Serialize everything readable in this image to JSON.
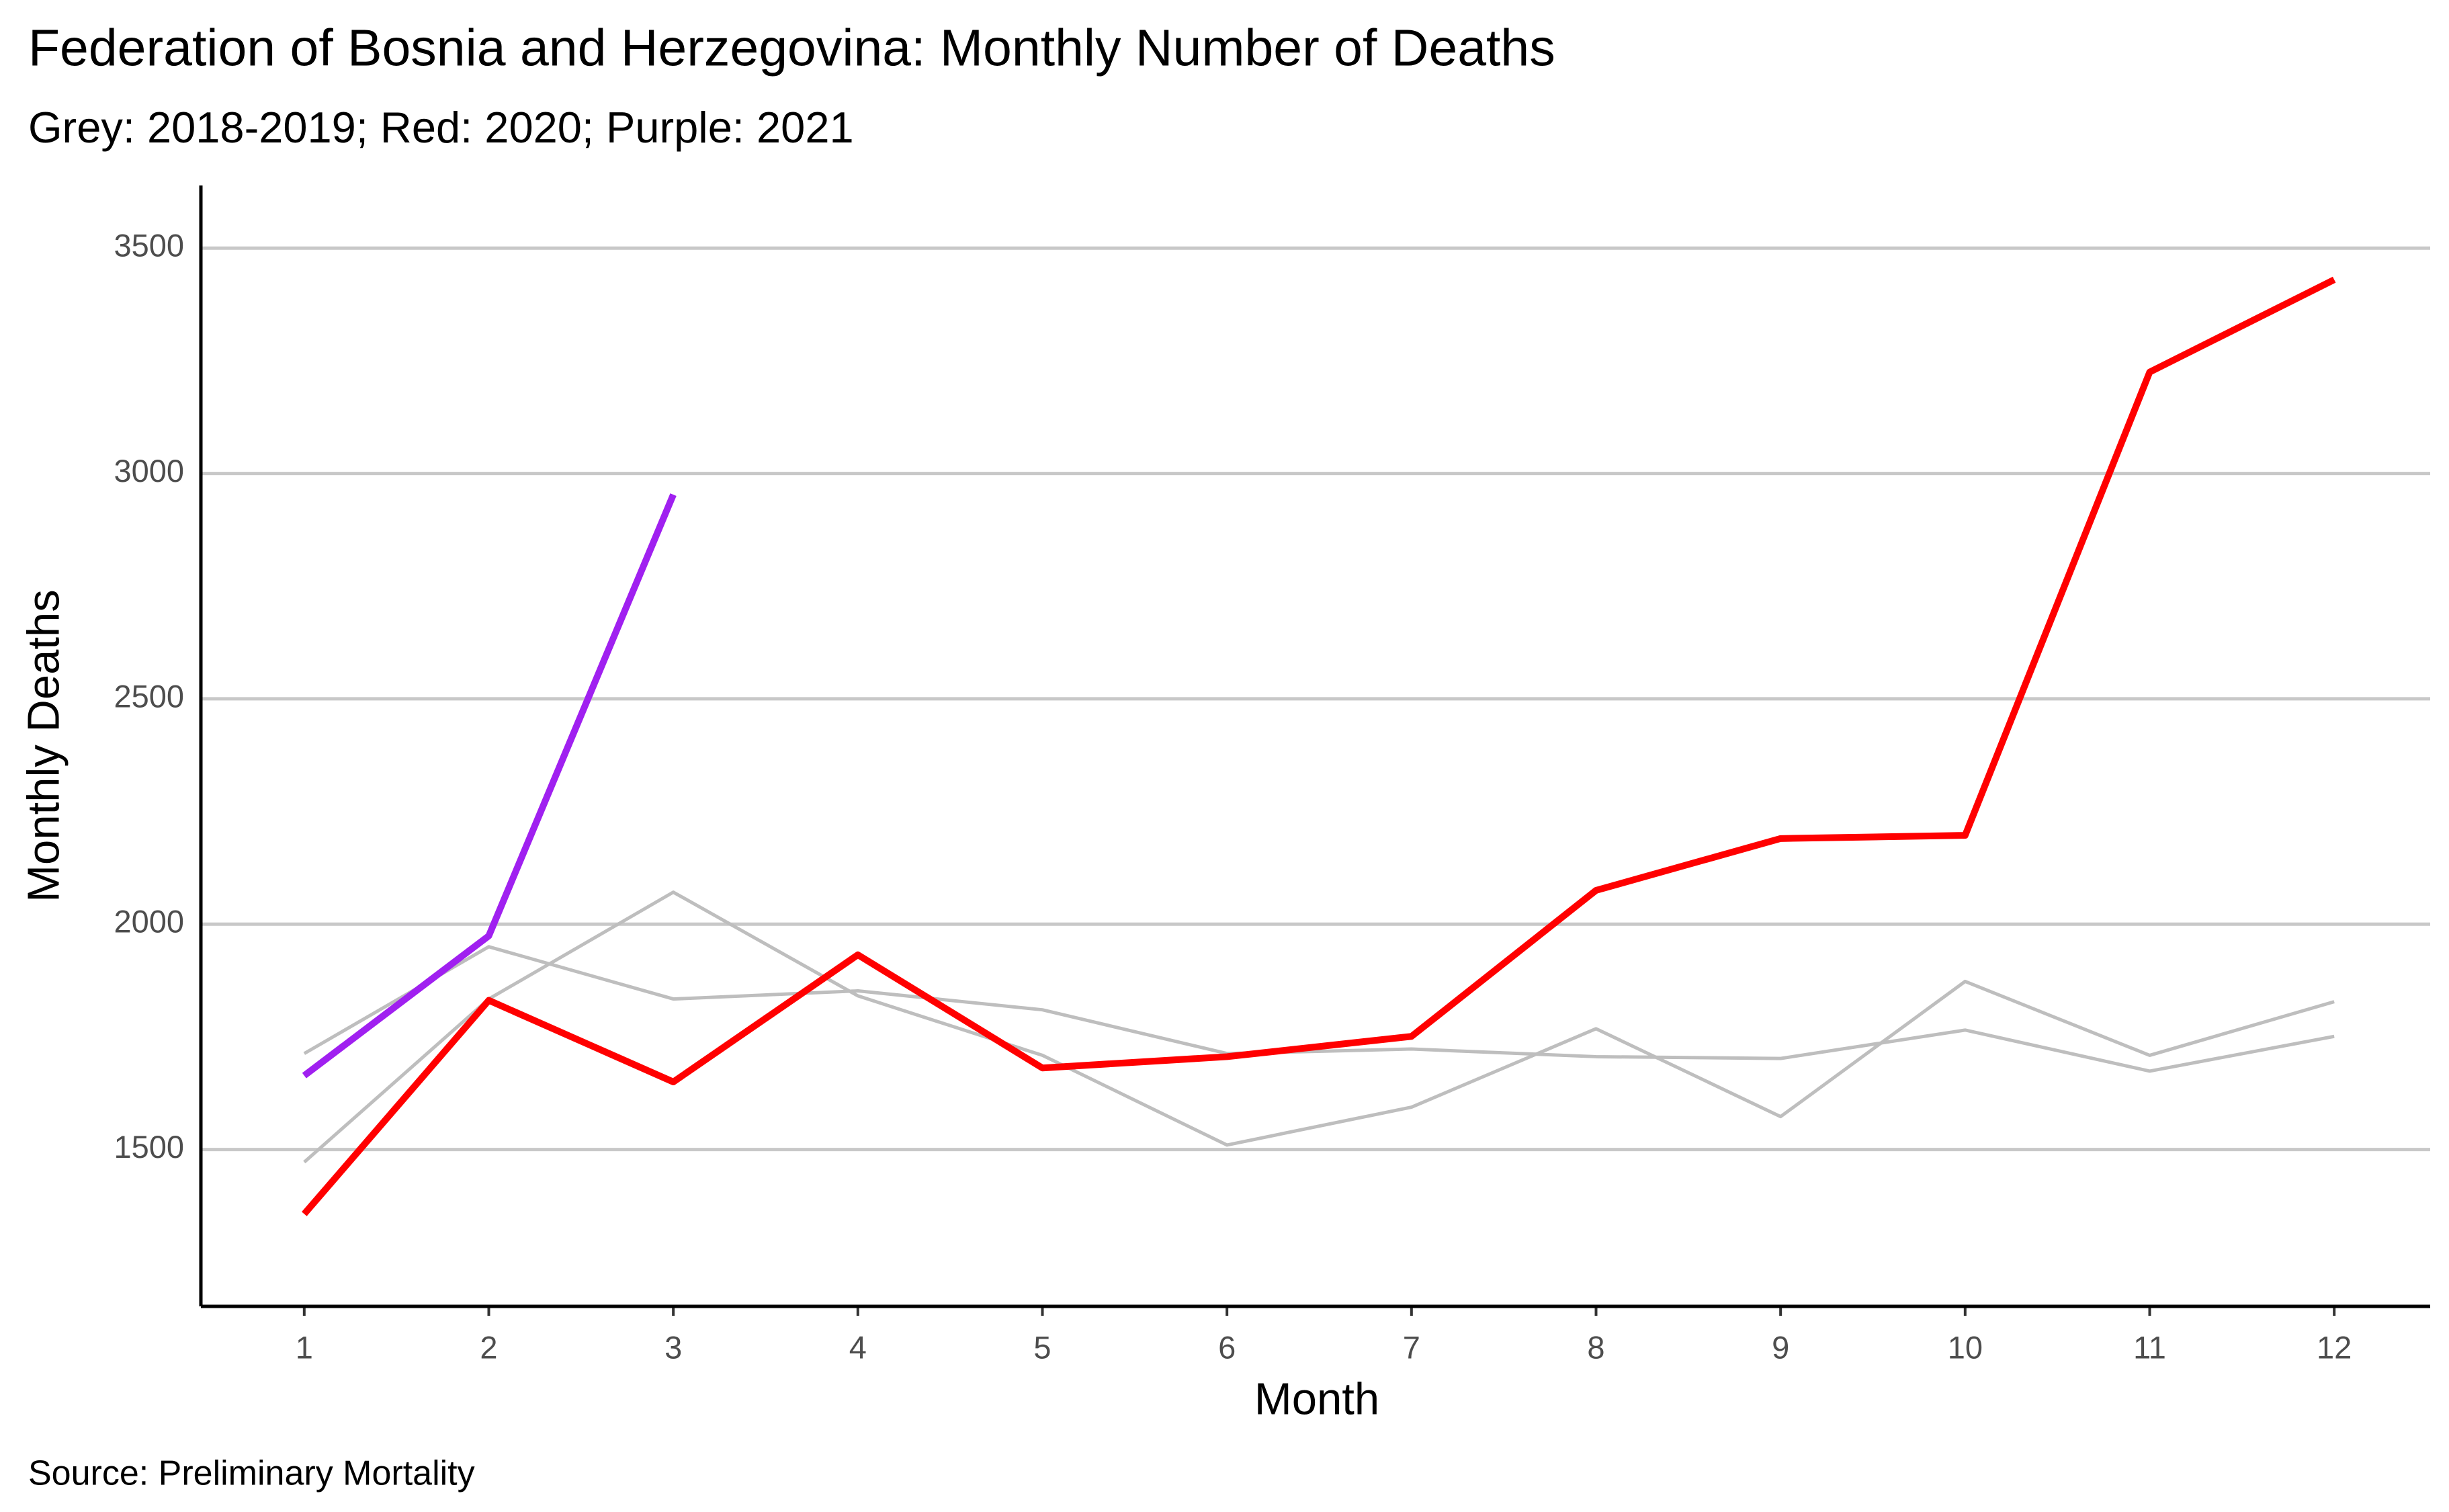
{
  "chart_data": {
    "type": "line",
    "title": "Federation of Bosnia and Herzegovina: Monthly Number of Deaths",
    "subtitle": "Grey: 2018-2019; Red: 2020; Purple: 2021",
    "x_label": "Month",
    "y_label": "Monthly Deaths",
    "caption": "Source: Preliminary Mortality",
    "x": [
      1,
      2,
      3,
      4,
      5,
      6,
      7,
      8,
      9,
      10,
      11,
      12
    ],
    "series": [
      {
        "color": "#bebebe",
        "values": [
          1713,
          1950,
          1834,
          1852,
          1810,
          1713,
          1723,
          1706,
          1702,
          1765,
          1674,
          1751
        ]
      },
      {
        "color": "#bebebe",
        "values": [
          1472,
          1834,
          2071,
          1841,
          1709,
          1510,
          1594,
          1768,
          1573,
          1873,
          1709,
          1828
        ]
      },
      {
        "color": "#ff0000",
        "values": [
          1357,
          1831,
          1650,
          1932,
          1681,
          1706,
          1751,
          2075,
          2190,
          2197,
          3225,
          3430
        ]
      },
      {
        "color": "#a020f0",
        "values": [
          1664,
          1974,
          2953,
          null,
          null,
          null,
          null,
          null,
          null,
          null,
          null,
          null
        ]
      }
    ],
    "xlim": [
      0.44,
      12.52
    ],
    "xticks": [
      1,
      2,
      3,
      4,
      5,
      6,
      7,
      8,
      9,
      10,
      11,
      12
    ],
    "ylim": [
      1152,
      3639
    ],
    "yticks": [
      1500,
      2000,
      2500,
      3000,
      3500
    ],
    "grid": true
  }
}
